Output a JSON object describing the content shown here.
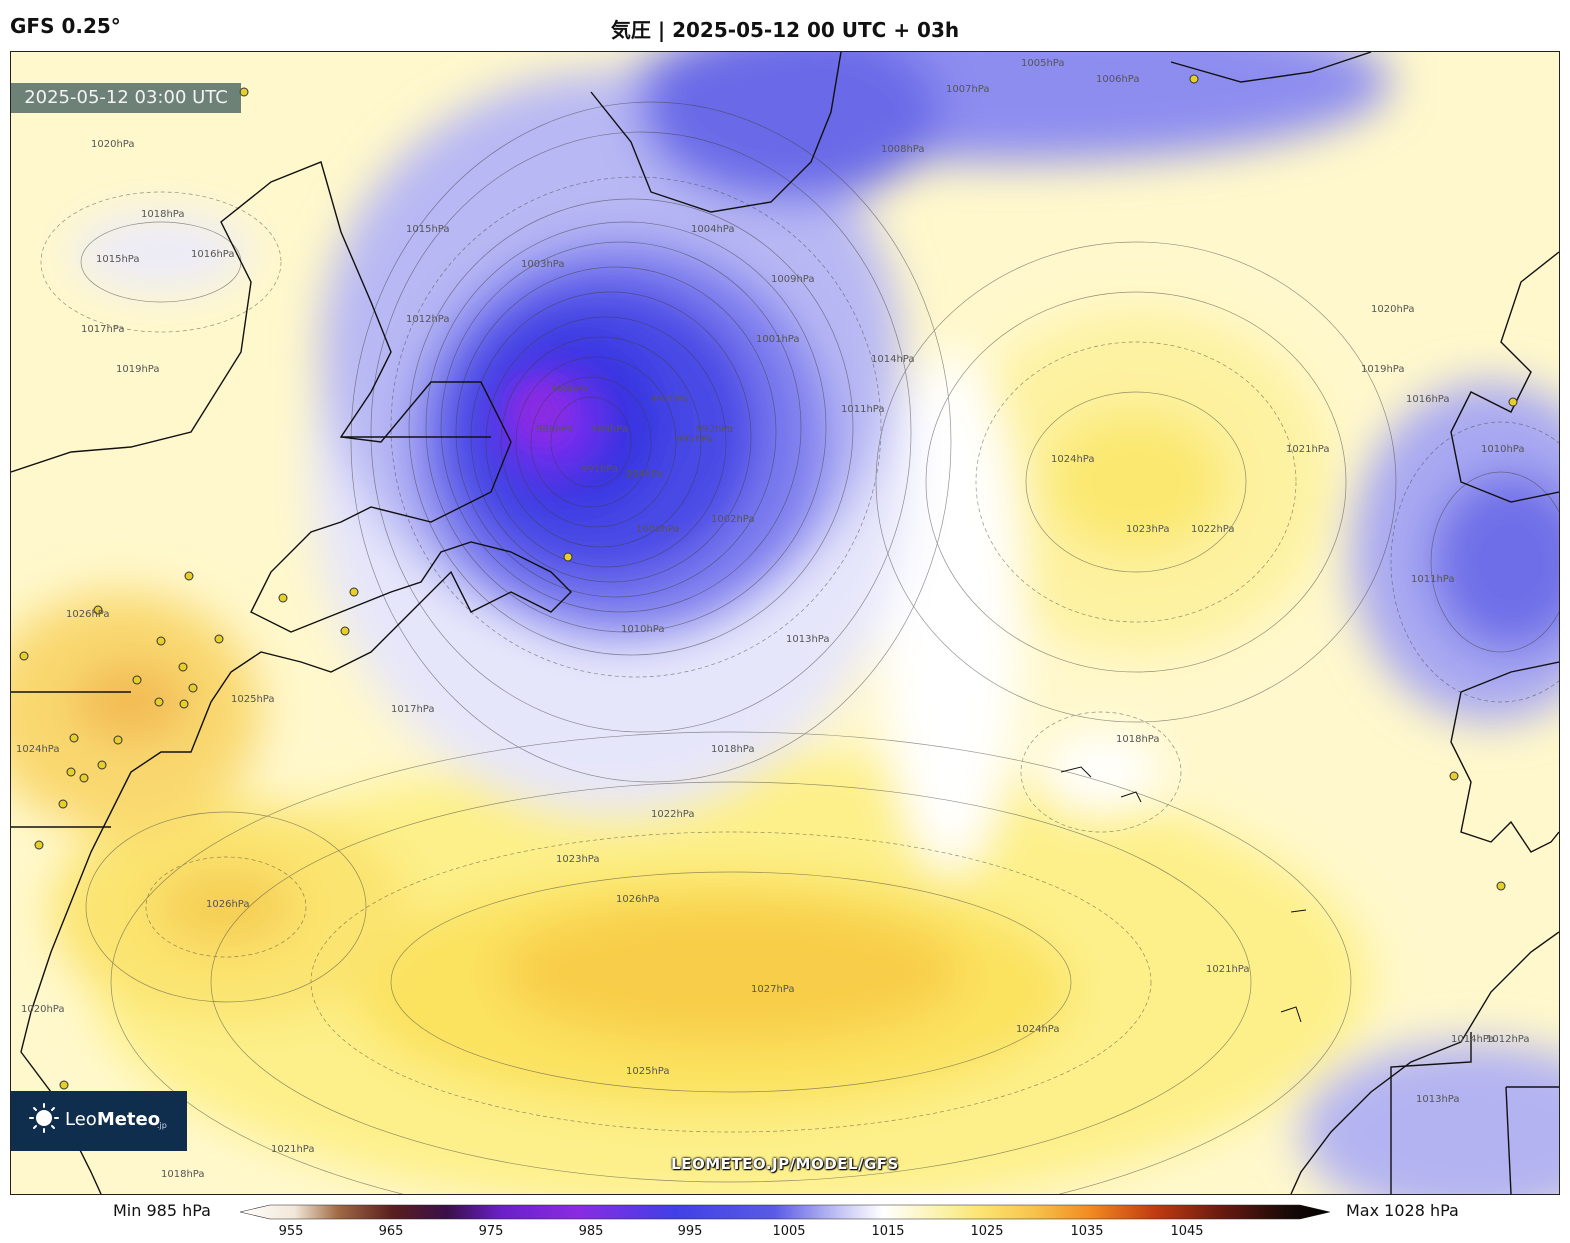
{
  "header": {
    "model": "GFS 0.25°",
    "title": "気圧 | 2025-05-12 00 UTC + 03h"
  },
  "map": {
    "timestamp": "2025-05-12 03:00 UTC",
    "credit": "LEOMETEO.JP/MODEL/GFS",
    "logo": {
      "name_light": "Leo",
      "name_bold": "Meteo",
      "suffix": ".jp"
    },
    "contour_labels": [
      "1005hPa",
      "1006hPa",
      "1007hPa",
      "1008hPa",
      "1015hPa",
      "1017hPa",
      "1020hPa",
      "1018hPa",
      "1016hPa",
      "1019hPa",
      "1012hPa",
      "1010hPa",
      "1002hPa",
      "1004hPa",
      "1001hPa",
      "1009hPa",
      "986hPa",
      "988hPa",
      "989hPa",
      "991hPa",
      "992hPa",
      "994hPa",
      "995hPa",
      "997hPa",
      "1000hPa",
      "1003hPa",
      "1011hPa",
      "1013hPa",
      "1014hPa",
      "1021hPa",
      "1022hPa",
      "1023hPa",
      "1024hPa",
      "1025hPa",
      "1026hPa",
      "1027hPa"
    ],
    "colors": {
      "low_core": "#8a2be2",
      "low": "#3a3ae8",
      "neutral": "#ffffff",
      "high": "#fbe870",
      "high_core": "#f8c846",
      "coast": "#111111",
      "city_marker": "#e6cf2a"
    }
  },
  "colorbar": {
    "min_label": "Min 985 hPa",
    "max_label": "Max 1028 hPa",
    "ticks": [
      "955",
      "965",
      "975",
      "985",
      "995",
      "1005",
      "1015",
      "1025",
      "1035",
      "1045"
    ]
  }
}
